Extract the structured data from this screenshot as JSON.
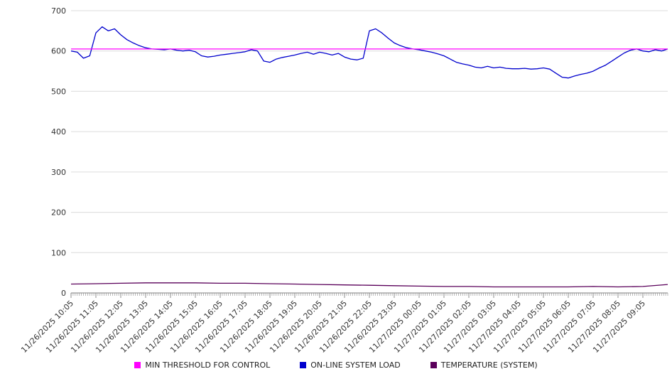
{
  "chart_data": {
    "type": "line",
    "title": "",
    "xlabel": "",
    "ylabel": "",
    "ylim": [
      0,
      700
    ],
    "y_ticks": [
      0,
      100,
      200,
      300,
      400,
      500,
      600,
      700
    ],
    "grid": "horizontal",
    "legend_position": "bottom",
    "x_tick_labels": [
      "11/26/2025 10:05",
      "11/26/2025 11:05",
      "11/26/2025 12:05",
      "11/26/2025 13:05",
      "11/26/2025 14:05",
      "11/26/2025 15:05",
      "11/26/2025 16:05",
      "11/26/2025 17:05",
      "11/26/2025 18:05",
      "11/26/2025 19:05",
      "11/26/2025 20:05",
      "11/26/2025 21:05",
      "11/26/2025 22:05",
      "11/26/2025 23:05",
      "11/27/2025 00:05",
      "11/27/2025 01:05",
      "11/27/2025 02:05",
      "11/27/2025 03:05",
      "11/27/2025 04:05",
      "11/27/2025 05:05",
      "11/27/2025 06:05",
      "11/27/2025 07:05",
      "11/27/2025 08:05",
      "11/27/2025 09:05"
    ],
    "series": [
      {
        "name": "MIN THRESHOLD FOR CONTROL",
        "color": "#ff00ff",
        "type": "hline",
        "value": 605
      },
      {
        "name": "ON-LINE SYSTEM LOAD",
        "color": "#0000cd",
        "type": "line",
        "values": [
          600,
          597,
          582,
          588,
          645,
          660,
          650,
          655,
          640,
          628,
          620,
          613,
          608,
          605,
          604,
          603,
          605,
          602,
          600,
          602,
          598,
          588,
          585,
          587,
          590,
          592,
          594,
          596,
          598,
          603,
          600,
          575,
          572,
          580,
          584,
          587,
          590,
          594,
          597,
          592,
          597,
          594,
          590,
          594,
          585,
          580,
          578,
          582,
          650,
          655,
          645,
          632,
          620,
          613,
          608,
          605,
          603,
          600,
          597,
          593,
          588,
          580,
          572,
          568,
          565,
          560,
          558,
          562,
          558,
          560,
          557,
          556,
          556,
          557,
          555,
          556,
          558,
          555,
          545,
          535,
          533,
          538,
          542,
          545,
          550,
          558,
          565,
          575,
          585,
          595,
          602,
          605,
          600,
          598,
          603,
          600,
          605
        ]
      },
      {
        "name": "TEMPERATURE (SYSTEM)",
        "color": "#5a005a",
        "type": "line",
        "values": [
          22,
          23,
          24,
          25,
          25,
          25,
          24,
          24,
          23,
          22,
          21,
          20,
          19,
          18,
          17,
          16,
          16,
          15,
          15,
          15,
          15,
          16,
          15,
          16,
          21
        ]
      }
    ]
  }
}
